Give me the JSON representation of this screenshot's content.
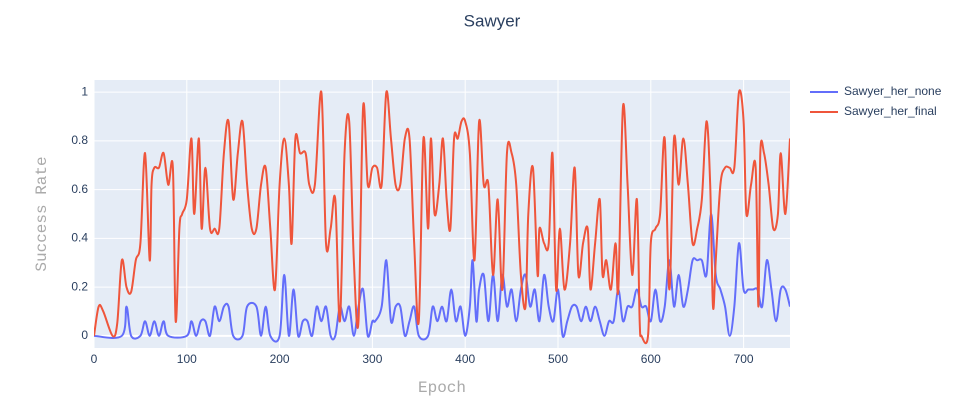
{
  "chart_data": {
    "type": "line",
    "title": "Sawyer",
    "xlabel": "Epoch",
    "ylabel": "Success Rate",
    "xlim": [
      0,
      750
    ],
    "ylim": [
      -0.05,
      1.05
    ],
    "xticks": [
      0,
      100,
      200,
      300,
      400,
      500,
      600,
      700
    ],
    "yticks": [
      0,
      0.2,
      0.4,
      0.6,
      0.8,
      1
    ],
    "grid": true,
    "legend": "right",
    "series": [
      {
        "name": "Sawyer_her_none",
        "color": "#636efa",
        "x": [
          0,
          30,
          35,
          40,
          50,
          55,
          60,
          65,
          70,
          75,
          80,
          100,
          105,
          110,
          115,
          120,
          125,
          130,
          135,
          140,
          145,
          150,
          160,
          165,
          175,
          180,
          185,
          190,
          200,
          205,
          210,
          215,
          220,
          225,
          230,
          235,
          240,
          245,
          250,
          255,
          260,
          265,
          270,
          275,
          280,
          285,
          290,
          295,
          300,
          303,
          310,
          315,
          320,
          325,
          330,
          335,
          340,
          345,
          350,
          360,
          365,
          370,
          375,
          380,
          385,
          390,
          395,
          400,
          405,
          408,
          412,
          415,
          420,
          425,
          430,
          435,
          440,
          445,
          450,
          455,
          460,
          465,
          470,
          475,
          480,
          485,
          490,
          495,
          500,
          505,
          510,
          515,
          520,
          525,
          530,
          535,
          540,
          545,
          550,
          555,
          560,
          565,
          570,
          575,
          580,
          585,
          590,
          595,
          600,
          605,
          610,
          615,
          620,
          625,
          630,
          635,
          640,
          645,
          650,
          655,
          660,
          665,
          670,
          675,
          680,
          685,
          690,
          695,
          700,
          705,
          710,
          715,
          720,
          725,
          730,
          735,
          740,
          745,
          750
        ],
        "values": [
          0,
          0,
          0.12,
          0,
          0,
          0.06,
          0,
          0.06,
          0,
          0.06,
          0,
          0,
          0.06,
          0,
          0.06,
          0.06,
          0,
          0.12,
          0.06,
          0.12,
          0.12,
          0,
          0,
          0.12,
          0.12,
          0,
          0.12,
          0,
          0,
          0.25,
          0,
          0.19,
          0,
          0.06,
          0.06,
          0,
          0.12,
          0.06,
          0.12,
          0,
          0,
          0.12,
          0.06,
          0.12,
          0,
          0.12,
          0.19,
          0,
          0.06,
          0.06,
          0.12,
          0.31,
          0.06,
          0.12,
          0.12,
          0,
          0.06,
          0.12,
          0,
          0,
          0.12,
          0.06,
          0.12,
          0.06,
          0.19,
          0.06,
          0.12,
          0,
          0.12,
          0.31,
          0.06,
          0.19,
          0.25,
          0.06,
          0.25,
          0.06,
          0.25,
          0.12,
          0.19,
          0.06,
          0.19,
          0.25,
          0.12,
          0.19,
          0.06,
          0.25,
          0.12,
          0.06,
          0.19,
          0,
          0.06,
          0.12,
          0.12,
          0.06,
          0.12,
          0.06,
          0.12,
          0.06,
          0,
          0.06,
          0.06,
          0.19,
          0.06,
          0.12,
          0.12,
          0.19,
          0.12,
          0.12,
          0.06,
          0.19,
          0.06,
          0.12,
          0.31,
          0.12,
          0.25,
          0.12,
          0.19,
          0.31,
          0.31,
          0.31,
          0.25,
          0.5,
          0.25,
          0.19,
          0.12,
          0,
          0.12,
          0.38,
          0.19,
          0.19,
          0.19,
          0.19,
          0.12,
          0.31,
          0.19,
          0.06,
          0.19,
          0.19,
          0.12
        ]
      },
      {
        "name": "Sawyer_her_final",
        "color": "#ef553b",
        "x": [
          0,
          5,
          10,
          20,
          25,
          30,
          35,
          40,
          45,
          50,
          55,
          60,
          62,
          65,
          70,
          75,
          80,
          85,
          88,
          92,
          95,
          100,
          105,
          108,
          113,
          116,
          120,
          125,
          130,
          135,
          140,
          145,
          150,
          155,
          160,
          165,
          170,
          175,
          180,
          185,
          190,
          195,
          200,
          205,
          210,
          213,
          217,
          222,
          228,
          232,
          238,
          245,
          250,
          255,
          260,
          265,
          270,
          275,
          280,
          285,
          290,
          295,
          300,
          305,
          310,
          315,
          320,
          325,
          330,
          335,
          340,
          345,
          350,
          355,
          360,
          363,
          367,
          372,
          376,
          380,
          384,
          388,
          392,
          396,
          400,
          405,
          410,
          415,
          420,
          425,
          430,
          435,
          440,
          445,
          450,
          455,
          460,
          465,
          468,
          473,
          478,
          480,
          485,
          490,
          494,
          498,
          502,
          507,
          513,
          518,
          522,
          527,
          532,
          535,
          540,
          545,
          548,
          552,
          557,
          562,
          565,
          570,
          575,
          580,
          585,
          588,
          590,
          597,
          600,
          605,
          610,
          615,
          620,
          625,
          630,
          635,
          640,
          645,
          650,
          655,
          660,
          664,
          667,
          670,
          675,
          680,
          685,
          690,
          695,
          700,
          703,
          708,
          713,
          716,
          718,
          722,
          727,
          732,
          737,
          740,
          745,
          750
        ],
        "values": [
          0,
          0.12,
          0.1,
          0,
          0.05,
          0.31,
          0.2,
          0.18,
          0.31,
          0.38,
          0.75,
          0.31,
          0.62,
          0.69,
          0.69,
          0.75,
          0.62,
          0.69,
          0.06,
          0.44,
          0.5,
          0.56,
          0.81,
          0.5,
          0.81,
          0.44,
          0.69,
          0.44,
          0.44,
          0.44,
          0.75,
          0.88,
          0.56,
          0.75,
          0.88,
          0.62,
          0.44,
          0.44,
          0.62,
          0.69,
          0.44,
          0.19,
          0.62,
          0.81,
          0.62,
          0.38,
          0.81,
          0.75,
          0.75,
          0.62,
          0.62,
          1,
          0.38,
          0.44,
          0.56,
          0.06,
          0.75,
          0.88,
          0.31,
          0.06,
          0.94,
          0.62,
          0.69,
          0.69,
          0.62,
          1,
          0.81,
          0.62,
          0.62,
          0.81,
          0.81,
          0.38,
          0.06,
          0.81,
          0.44,
          0.81,
          0.5,
          0.62,
          0.81,
          0.56,
          0.44,
          0.81,
          0.81,
          0.88,
          0.88,
          0.75,
          0.31,
          0.88,
          0.62,
          0.62,
          0.25,
          0.56,
          0.19,
          0.75,
          0.75,
          0.62,
          0.25,
          0.12,
          0.5,
          0.69,
          0.25,
          0.44,
          0.38,
          0.38,
          0.75,
          0.19,
          0.44,
          0.19,
          0.38,
          0.69,
          0.25,
          0.38,
          0.44,
          0.19,
          0.38,
          0.56,
          0.25,
          0.31,
          0.19,
          0.38,
          0.19,
          0.94,
          0.62,
          0.25,
          0.56,
          0.06,
          0,
          0,
          0.38,
          0.44,
          0.5,
          0.81,
          0.19,
          0.81,
          0.62,
          0.81,
          0.62,
          0.38,
          0.44,
          0.56,
          0.88,
          0.62,
          0.12,
          0.31,
          0.62,
          0.69,
          0.69,
          0.69,
          1,
          0.88,
          0.5,
          0.62,
          0.69,
          0.12,
          0.75,
          0.75,
          0.62,
          0.44,
          0.5,
          0.75,
          0.5,
          0.81
        ]
      }
    ]
  }
}
